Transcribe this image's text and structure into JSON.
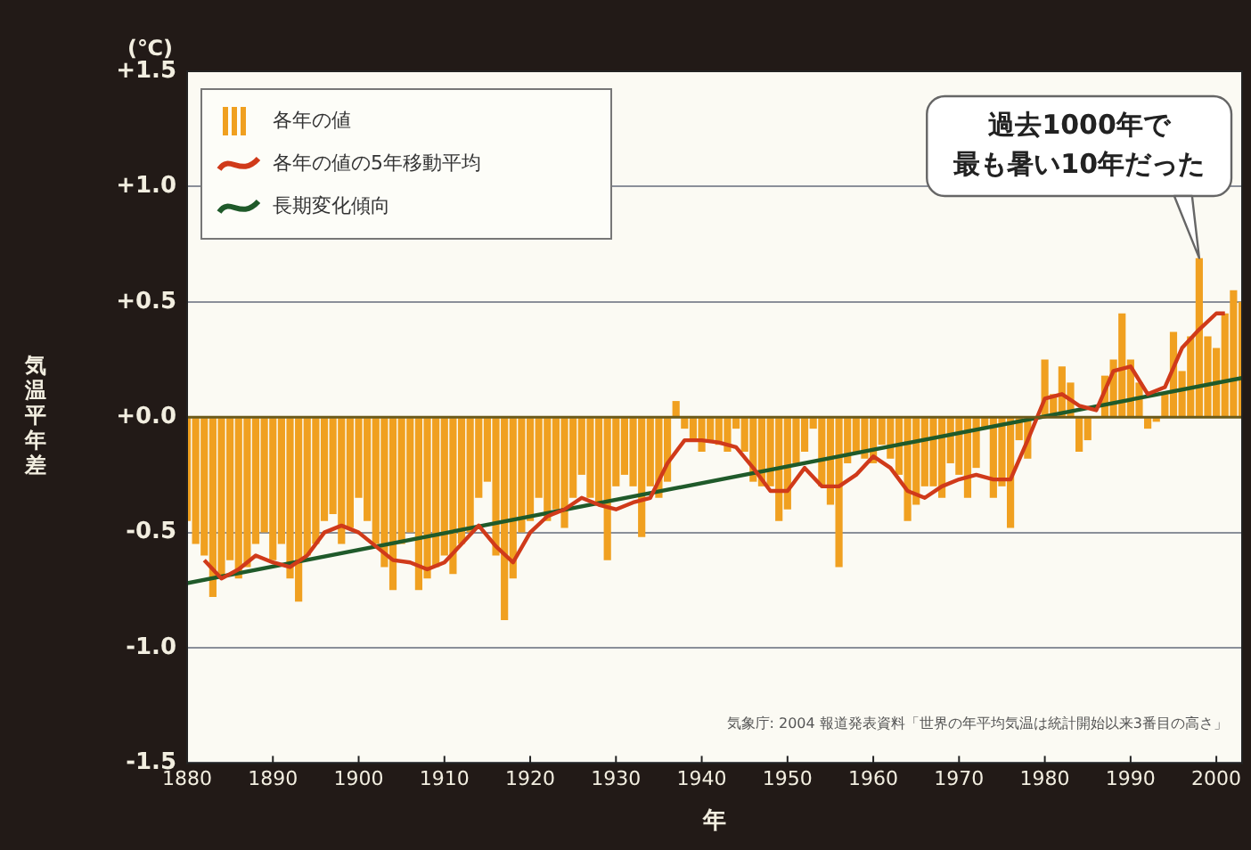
{
  "chart_data": {
    "type": "bar",
    "xlabel": "年",
    "ylabel": "気温平年差",
    "x": [
      1880,
      1881,
      1882,
      1883,
      1884,
      1885,
      1886,
      1887,
      1888,
      1889,
      1890,
      1891,
      1892,
      1893,
      1894,
      1895,
      1896,
      1897,
      1898,
      1899,
      1900,
      1901,
      1902,
      1903,
      1904,
      1905,
      1906,
      1907,
      1908,
      1909,
      1910,
      1911,
      1912,
      1913,
      1914,
      1915,
      1916,
      1917,
      1918,
      1919,
      1920,
      1921,
      1922,
      1923,
      1924,
      1925,
      1926,
      1927,
      1928,
      1929,
      1930,
      1931,
      1932,
      1933,
      1934,
      1935,
      1936,
      1937,
      1938,
      1939,
      1940,
      1941,
      1942,
      1943,
      1944,
      1945,
      1946,
      1947,
      1948,
      1949,
      1950,
      1951,
      1952,
      1953,
      1954,
      1955,
      1956,
      1957,
      1958,
      1959,
      1960,
      1961,
      1962,
      1963,
      1964,
      1965,
      1966,
      1967,
      1968,
      1969,
      1970,
      1971,
      1972,
      1973,
      1974,
      1975,
      1976,
      1977,
      1978,
      1979,
      1980,
      1981,
      1982,
      1983,
      1984,
      1985,
      1986,
      1987,
      1988,
      1989,
      1990,
      1991,
      1992,
      1993,
      1994,
      1995,
      1996,
      1997,
      1998,
      1999,
      2000,
      2001,
      2002,
      2003
    ],
    "series": [
      {
        "name": "各年の値",
        "color": "#f0a020",
        "values": [
          -0.45,
          -0.55,
          -0.6,
          -0.78,
          -0.7,
          -0.62,
          -0.7,
          -0.65,
          -0.55,
          -0.5,
          -0.62,
          -0.55,
          -0.7,
          -0.8,
          -0.6,
          -0.55,
          -0.45,
          -0.42,
          -0.55,
          -0.48,
          -0.35,
          -0.45,
          -0.55,
          -0.65,
          -0.75,
          -0.55,
          -0.5,
          -0.75,
          -0.7,
          -0.65,
          -0.6,
          -0.68,
          -0.55,
          -0.5,
          -0.35,
          -0.28,
          -0.6,
          -0.88,
          -0.7,
          -0.5,
          -0.45,
          -0.35,
          -0.45,
          -0.4,
          -0.48,
          -0.35,
          -0.25,
          -0.35,
          -0.38,
          -0.62,
          -0.3,
          -0.25,
          -0.3,
          -0.52,
          -0.3,
          -0.35,
          -0.28,
          0.07,
          -0.05,
          -0.1,
          -0.15,
          -0.1,
          -0.12,
          -0.15,
          -0.05,
          -0.15,
          -0.28,
          -0.3,
          -0.3,
          -0.45,
          -0.4,
          -0.2,
          -0.15,
          -0.05,
          -0.3,
          -0.38,
          -0.65,
          -0.2,
          -0.15,
          -0.18,
          -0.2,
          -0.12,
          -0.18,
          -0.25,
          -0.45,
          -0.38,
          -0.3,
          -0.3,
          -0.35,
          -0.2,
          -0.25,
          -0.35,
          -0.22,
          -0.05,
          -0.35,
          -0.3,
          -0.48,
          -0.1,
          -0.18,
          null,
          0.25,
          0.1,
          0.22,
          0.15,
          -0.15,
          -0.1,
          null,
          0.18,
          0.25,
          0.45,
          0.25,
          0.15,
          -0.05,
          -0.02,
          0.1,
          0.37,
          0.2,
          0.35,
          0.69,
          0.35,
          0.3,
          0.45,
          0.55,
          0.5
        ]
      },
      {
        "type": "line",
        "name": "各年の値の5年移動平均",
        "color": "#d03a1a",
        "x": [
          1882,
          1884,
          1886,
          1888,
          1890,
          1892,
          1894,
          1896,
          1898,
          1900,
          1902,
          1904,
          1906,
          1908,
          1910,
          1912,
          1914,
          1916,
          1918,
          1920,
          1922,
          1924,
          1926,
          1928,
          1930,
          1932,
          1934,
          1936,
          1938,
          1940,
          1942,
          1944,
          1946,
          1948,
          1950,
          1952,
          1954,
          1956,
          1958,
          1960,
          1962,
          1964,
          1966,
          1968,
          1970,
          1972,
          1974,
          1976,
          1978,
          1980,
          1982,
          1984,
          1986,
          1988,
          1990,
          1992,
          1994,
          1996,
          1998,
          2000,
          2001
        ],
        "values": [
          -0.62,
          -0.7,
          -0.66,
          -0.6,
          -0.63,
          -0.65,
          -0.6,
          -0.5,
          -0.47,
          -0.5,
          -0.56,
          -0.62,
          -0.63,
          -0.66,
          -0.63,
          -0.55,
          -0.47,
          -0.56,
          -0.63,
          -0.5,
          -0.43,
          -0.4,
          -0.35,
          -0.38,
          -0.4,
          -0.37,
          -0.35,
          -0.2,
          -0.1,
          -0.1,
          -0.11,
          -0.13,
          -0.22,
          -0.32,
          -0.32,
          -0.22,
          -0.3,
          -0.3,
          -0.25,
          -0.17,
          -0.22,
          -0.32,
          -0.35,
          -0.3,
          -0.27,
          -0.25,
          -0.27,
          -0.27,
          -0.1,
          0.08,
          0.1,
          0.05,
          0.03,
          0.2,
          0.22,
          0.1,
          0.13,
          0.3,
          0.38,
          0.45,
          0.45
        ]
      },
      {
        "type": "line",
        "name": "長期変化傾向",
        "color": "#1f5a2a",
        "x": [
          1880,
          2003
        ],
        "values": [
          -0.72,
          0.17
        ]
      }
    ],
    "xlim": [
      1880,
      2003
    ],
    "xticks": [
      1880,
      1890,
      1900,
      1910,
      1920,
      1930,
      1940,
      1950,
      1960,
      1970,
      1980,
      1990,
      2000
    ],
    "ylim": [
      -1.5,
      1.5
    ],
    "yticks": [
      {
        "value": 1.5,
        "label": "+1.5"
      },
      {
        "value": 1.0,
        "label": "+1.0"
      },
      {
        "value": 0.5,
        "label": "+0.5"
      },
      {
        "value": 0,
        "label": "+0.0"
      },
      {
        "value": -0.5,
        "label": "-0.5"
      },
      {
        "value": -1.0,
        "label": "-1.0"
      },
      {
        "value": -1.5,
        "label": "-1.5"
      }
    ],
    "grid": "y",
    "ref_lines": [
      {
        "axis": "y",
        "value": 0,
        "color": "#6b5a1a"
      }
    ],
    "legend": "top left",
    "marker": "none",
    "line_style": "solid",
    "annotations": [
      "(℃)",
      {
        "text": "過去1000年で最も暑い10年だった",
        "x": 1998,
        "y": 0.69
      },
      "気象庁: 2004 報道発表資料「世界の年平均気温は統計開始以来3番目の高さ」"
    ]
  }
}
